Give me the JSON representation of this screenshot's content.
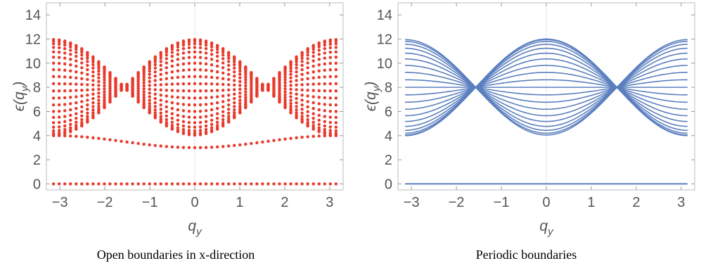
{
  "chart_data": [
    {
      "type": "scatter",
      "caption": "Open boundaries in x-direction",
      "xlabel": "q",
      "xlabel_sub": "y",
      "ylabel": "ϵ(q",
      "ylabel_sub": "y",
      "ylabel_close": ")",
      "xlim": [
        -3.3,
        3.3
      ],
      "ylim": [
        -0.5,
        15
      ],
      "x_ticks": [
        -3,
        -2,
        -1,
        0,
        1,
        2,
        3
      ],
      "x_tick_labels": [
        "−3",
        "−2",
        "−1",
        "0",
        "1",
        "2",
        "3"
      ],
      "y_ticks": [
        0,
        2,
        4,
        6,
        8,
        10,
        12,
        14
      ],
      "y_tick_labels": [
        "0",
        "2",
        "4",
        "6",
        "8",
        "10",
        "12",
        "14"
      ],
      "q_range": [
        -3.14159,
        3.14159
      ],
      "num_q": 51,
      "num_bands": 20,
      "flat_band": 0,
      "band_model": "eps = 8 - 4*cos(q)*cos(k) +/- edge mixing; k_j = j*pi/(N+1)",
      "color": "#e8392b"
    },
    {
      "type": "line",
      "caption": "Periodic boundaries",
      "xlabel": "q",
      "xlabel_sub": "y",
      "ylabel": "ϵ(q",
      "ylabel_sub": "y",
      "ylabel_close": ")",
      "xlim": [
        -3.3,
        3.3
      ],
      "ylim": [
        -0.5,
        15
      ],
      "x_ticks": [
        -3,
        -2,
        -1,
        0,
        1,
        2,
        3
      ],
      "x_tick_labels": [
        "−3",
        "−2",
        "−1",
        "0",
        "1",
        "2",
        "3"
      ],
      "y_ticks": [
        0,
        2,
        4,
        6,
        8,
        10,
        12,
        14
      ],
      "y_tick_labels": [
        "0",
        "2",
        "4",
        "6",
        "8",
        "10",
        "12",
        "14"
      ],
      "q_range": [
        -3.14159,
        3.14159
      ],
      "num_bands": 20,
      "flat_band": 0,
      "color": "#5b7fbf"
    }
  ]
}
